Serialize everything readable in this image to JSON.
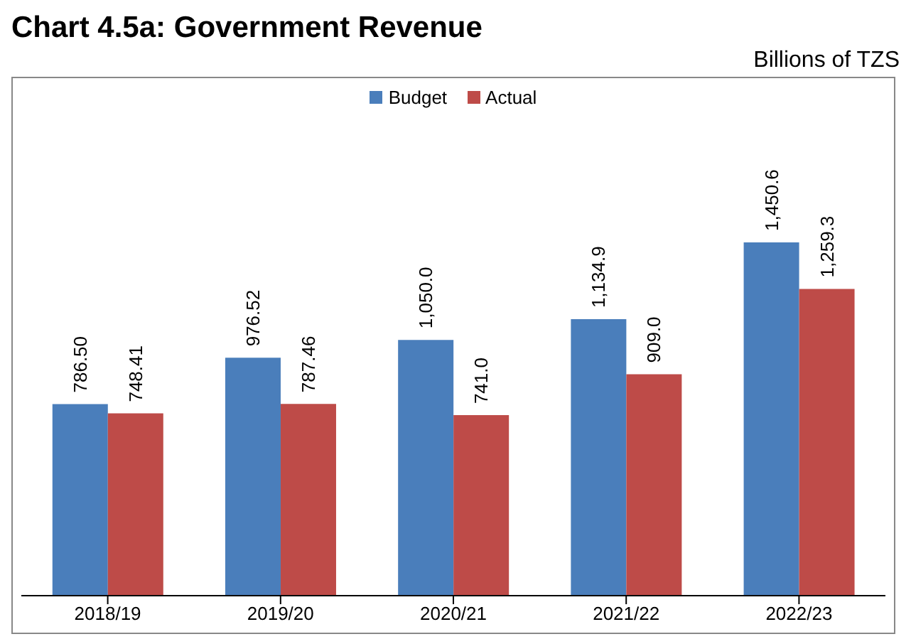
{
  "chart_data": {
    "type": "bar",
    "title": "Chart 4.5a: Government Revenue",
    "subtitle": "Billions of TZS",
    "categories": [
      "2018/19",
      "2019/20",
      "2020/21",
      "2021/22",
      "2022/23"
    ],
    "series": [
      {
        "name": "Budget",
        "color": "#4a7ebb",
        "values": [
          786.5,
          976.52,
          1050.0,
          1134.9,
          1450.6
        ],
        "value_labels": [
          "786.50",
          "976.52",
          "1,050.0",
          "1,134.9",
          "1,450.6"
        ]
      },
      {
        "name": "Actual",
        "color": "#be4b48",
        "values": [
          748.41,
          787.46,
          741.0,
          909.0,
          1259.3
        ],
        "value_labels": [
          "748.41",
          "787.46",
          "741.0",
          "909.0",
          "1,259.3"
        ]
      }
    ],
    "legend": "top",
    "grid": false
  }
}
